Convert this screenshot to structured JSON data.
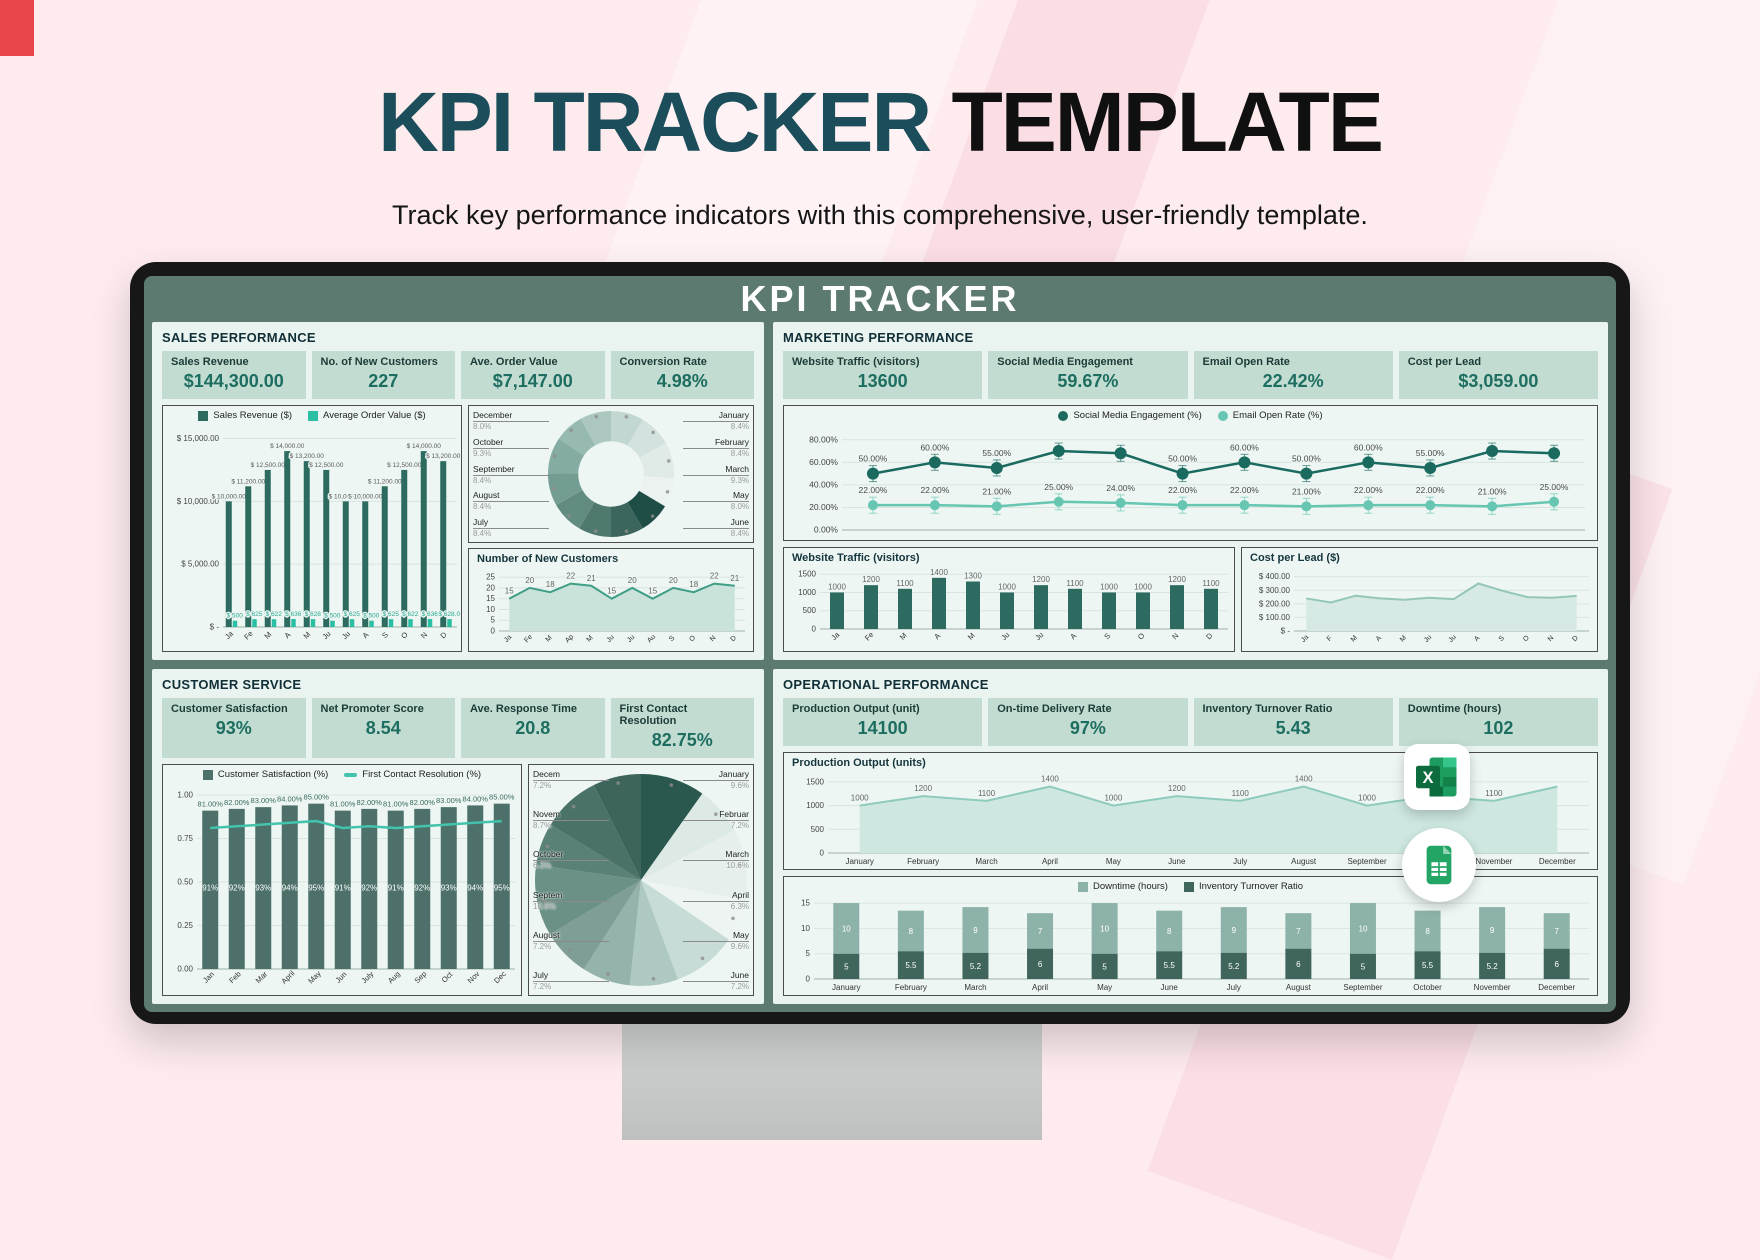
{
  "page": {
    "title_primary": "KPI TRACKER",
    "title_secondary": "TEMPLATE",
    "subtitle": "Track key performance indicators with this comprehensive, user-friendly template.",
    "screen_header": "KPI TRACKER"
  },
  "colors": {
    "page_background": "#fdebee",
    "title_teal": "#1b4e5a",
    "title_black": "#101010",
    "screen_chrome": "#5d7a71",
    "panel_background": "#e9f3f0",
    "kpi_card_background": "#c2dcd2",
    "kpi_value_text": "#1d6e60",
    "bar_dark_teal": "#2d6b61",
    "accent_teal": "#2abfa3",
    "corner_accent_red": "#e8464b"
  },
  "floating_icons": [
    {
      "name": "excel-icon"
    },
    {
      "name": "google-sheets-icon"
    }
  ],
  "sections": {
    "sales": {
      "title": "SALES PERFORMANCE",
      "kpis": [
        {
          "label": "Sales Revenue",
          "value": "$144,300.00"
        },
        {
          "label": "No. of New Customers",
          "value": "227"
        },
        {
          "label": "Ave. Order Value",
          "value": "$7,147.00"
        },
        {
          "label": "Conversion Rate",
          "value": "4.98%"
        }
      ]
    },
    "marketing": {
      "title": "MARKETING PERFORMANCE",
      "kpis": [
        {
          "label": "Website Traffic (visitors)",
          "value": "13600"
        },
        {
          "label": "Social Media Engagement",
          "value": "59.67%"
        },
        {
          "label": "Email Open Rate",
          "value": "22.42%"
        },
        {
          "label": "Cost per Lead",
          "value": "$3,059.00"
        }
      ]
    },
    "customer": {
      "title": "CUSTOMER SERVICE",
      "kpis": [
        {
          "label": "Customer Satisfaction",
          "value": "93%"
        },
        {
          "label": "Net Promoter Score",
          "value": "8.54"
        },
        {
          "label": "Ave. Response Time",
          "value": "20.8"
        },
        {
          "label": "First Contact Resolution",
          "value": "82.75%"
        }
      ]
    },
    "operational": {
      "title": "OPERATIONAL PERFORMANCE",
      "kpis": [
        {
          "label": "Production Output (unit)",
          "value": "14100"
        },
        {
          "label": "On-time Delivery Rate",
          "value": "97%"
        },
        {
          "label": "Inventory Turnover Ratio",
          "value": "5.43"
        },
        {
          "label": "Downtime (hours)",
          "value": "102"
        }
      ]
    }
  },
  "chart_data": [
    {
      "id": "sales_bars",
      "type": "grouped_bar",
      "legend": [
        {
          "label": "Sales Revenue ($)",
          "color": "#2d6b61",
          "shape": "square"
        },
        {
          "label": "Average Order Value ($)",
          "color": "#2abfa3",
          "shape": "square"
        }
      ],
      "categories": [
        "Ja",
        "Fe",
        "M",
        "A",
        "M",
        "Ju",
        "Ju",
        "A",
        "S",
        "O",
        "N",
        "D"
      ],
      "series": [
        {
          "name": "Sales Revenue ($)",
          "color": "#2d6b61",
          "values": [
            10000,
            11200,
            12500,
            14000,
            13200,
            12500,
            10000,
            10000,
            11200,
            12500,
            14000,
            13200
          ],
          "labels": [
            "$ 10,000.00",
            "$ 11,200.00",
            "$ 12,500.00",
            "$ 14,000.00",
            "$ 13,200.00",
            "$ 12,500.00",
            "$ 10,000.00",
            "$ 10,000.00",
            "$ 11,200.00",
            "$ 12,500.00",
            "$ 14,000.00",
            "$ 13,200.00"
          ]
        },
        {
          "name": "Average Order Value ($)",
          "color": "#2abfa3",
          "values": [
            500,
            625,
            622,
            636,
            628,
            500,
            625,
            500,
            625,
            622,
            636,
            628
          ],
          "labels": [
            "$ 500",
            "$ 625",
            "$ 622",
            "$ 636",
            "$ 628",
            "$ 500",
            "$ 625",
            "$ 500",
            "$ 625",
            "$ 622",
            "$ 636",
            "$ 628.0"
          ]
        }
      ],
      "yticks": [
        [
          0,
          "$ -"
        ],
        [
          5000,
          "$ 5,000.00"
        ],
        [
          10000,
          "$ 10,000.00"
        ],
        [
          15000,
          "$ 15,000.00"
        ]
      ],
      "ymax": 15600
    },
    {
      "id": "conversion_donut",
      "type": "donut",
      "note": "Conversion Rate share by month",
      "values": [
        8.4,
        8.4,
        9.3,
        7.5,
        8.0,
        8.4,
        8.4,
        8.4,
        8.4,
        9.3,
        7.5,
        8.0
      ],
      "colors": [
        "#c2d7d2",
        "#d3e2de",
        "#e0eae7",
        "#ebf2f0",
        "#1e4e45",
        "#3c665d",
        "#4f796f",
        "#628b81",
        "#739c92",
        "#85aca3",
        "#96bab1",
        "#abc7c0"
      ],
      "left_labels": [
        [
          "December",
          "8.0%"
        ],
        [
          "October",
          "9.3%"
        ],
        [
          "September",
          "8.4%"
        ],
        [
          "August",
          "8.4%"
        ],
        [
          "July",
          "8.4%"
        ]
      ],
      "right_labels": [
        [
          "January",
          "8.4%"
        ],
        [
          "February",
          "8.4%"
        ],
        [
          "March",
          "9.3%"
        ],
        [
          "May",
          "8.0%"
        ],
        [
          "June",
          "8.4%"
        ]
      ]
    },
    {
      "id": "new_customers",
      "type": "area",
      "title": "Number of New Customers",
      "categories": [
        "Ja",
        "Fe",
        "M",
        "Ap",
        "M",
        "Ju",
        "Ju",
        "Au",
        "S",
        "O",
        "N",
        "D"
      ],
      "values": [
        15,
        20,
        18,
        22,
        21,
        15,
        20,
        15,
        20,
        18,
        22,
        21
      ],
      "labels": [
        "15",
        "20",
        "18",
        "22",
        "21",
        "15",
        "20",
        "15",
        "20",
        "18",
        "22",
        "21"
      ],
      "yticks": [
        [
          0,
          "0"
        ],
        [
          5,
          "5"
        ],
        [
          10,
          "10"
        ],
        [
          15,
          "15"
        ],
        [
          20,
          "20"
        ],
        [
          25,
          "25"
        ]
      ],
      "ymax": 26,
      "ml": 30,
      "line": "#3f9e85",
      "fill": "#c9e3db"
    },
    {
      "id": "marketing_lines",
      "type": "multiline",
      "legend": [
        {
          "label": "Social Media Engagement (%)",
          "color": "#1a6a60",
          "shape": "circle"
        },
        {
          "label": "Email Open Rate (%)",
          "color": "#66c6b2",
          "shape": "circle"
        }
      ],
      "categories": [
        "Ja",
        "Fe",
        "M",
        "A",
        "M",
        "Ju",
        "Ju",
        "A",
        "S",
        "O",
        "N",
        "D"
      ],
      "series": [
        {
          "name": "Social Media Engagement (%)",
          "color": "#1a6a60",
          "values": [
            50,
            60,
            55,
            70,
            68,
            50,
            60,
            50,
            60,
            55,
            70,
            68
          ],
          "labels": [
            "50.00%",
            "60.00%",
            "55.00%",
            "",
            "",
            "50.00%",
            "60.00%",
            "50.00%",
            "60.00%",
            "55.00%",
            "",
            ""
          ]
        },
        {
          "name": "Email Open Rate (%)",
          "color": "#66c6b2",
          "values": [
            22,
            22,
            21,
            25,
            24,
            22,
            22,
            21,
            22,
            22,
            21,
            25
          ],
          "labels": [
            "22.00%",
            "22.00%",
            "21.00%",
            "25.00%",
            "24.00%",
            "22.00%",
            "22.00%",
            "21.00%",
            "22.00%",
            "22.00%",
            "21.00%",
            "25.00%"
          ]
        }
      ],
      "yticks": [
        [
          0,
          "0.00%"
        ],
        [
          20,
          "20.00%"
        ],
        [
          40,
          "40.00%"
        ],
        [
          60,
          "60.00%"
        ],
        [
          80,
          "80.00%"
        ]
      ],
      "ymax": 86
    },
    {
      "id": "website_traffic",
      "type": "bar",
      "title": "Website Traffic (visitors)",
      "color": "#2d6b61",
      "categories": [
        "Ja",
        "Fe",
        "M",
        "A",
        "M",
        "Ju",
        "Ju",
        "A",
        "S",
        "O",
        "N",
        "D"
      ],
      "values": [
        1000,
        1200,
        1100,
        1400,
        1300,
        1000,
        1200,
        1100,
        1000,
        1000,
        1200,
        1100
      ],
      "labels": [
        "1000",
        "1200",
        "1100",
        "1400",
        "1300",
        "1000",
        "1200",
        "1100",
        "1000",
        "1000",
        "1200",
        "1100"
      ],
      "yticks": [
        [
          0,
          "0"
        ],
        [
          500,
          "500"
        ],
        [
          1000,
          "1000"
        ],
        [
          1500,
          "1500"
        ]
      ],
      "ymax": 1560,
      "ml": 36
    },
    {
      "id": "cost_per_lead",
      "type": "area",
      "title": "Cost per Lead ($)",
      "categories": [
        "Ja",
        "F",
        "M",
        "A",
        "M",
        "Ju",
        "Ju",
        "A",
        "S",
        "O",
        "N",
        "D"
      ],
      "values": [
        240,
        210,
        260,
        240,
        230,
        245,
        235,
        350,
        295,
        250,
        245,
        259
      ],
      "yticks": [
        [
          0,
          "$ -"
        ],
        [
          100,
          "$ 100.00"
        ],
        [
          200,
          "$ 200.00"
        ],
        [
          300,
          "$ 300.00"
        ],
        [
          400,
          "$ 400.00"
        ]
      ],
      "ymax": 420,
      "ml": 52,
      "line": "#94c6b8",
      "fill": "#d7e9e4"
    },
    {
      "id": "cs_combo",
      "type": "combo",
      "legend": [
        {
          "label": "Customer Satisfaction  (%)",
          "color": "#4d716a",
          "shape": "square"
        },
        {
          "label": "First Contact Resolution (%)",
          "color": "#43c2ac",
          "shape": "dash"
        }
      ],
      "categories": [
        "Jan",
        "Feb",
        "Mar",
        "April",
        "May",
        "Jun",
        "July",
        "Aug",
        "Sep",
        "Oct",
        "Nov",
        "Dec"
      ],
      "bar_color": "#4d716a",
      "bars": [
        0.91,
        0.92,
        0.93,
        0.94,
        0.95,
        0.91,
        0.92,
        0.91,
        0.92,
        0.93,
        0.94,
        0.95
      ],
      "bar_labels": [
        "91%",
        "92%",
        "93%",
        "94%",
        "95%",
        "91%",
        "92%",
        "91%",
        "92%",
        "93%",
        "94%",
        "95%"
      ],
      "line_color": "#43c2ac",
      "line": [
        0.81,
        0.82,
        0.83,
        0.84,
        0.85,
        0.81,
        0.82,
        0.81,
        0.82,
        0.83,
        0.84,
        0.85
      ],
      "line_labels": [
        "81.00%",
        "82.00%",
        "83.00%",
        "84.00%",
        "85.00%",
        "81.00%",
        "82.00%",
        "81.00%",
        "82.00%",
        "83.00%",
        "84.00%",
        "85.00%"
      ],
      "yticks": [
        [
          0,
          "0.00"
        ],
        [
          0.25,
          "0.25"
        ],
        [
          0.5,
          "0.50"
        ],
        [
          0.75,
          "0.75"
        ],
        [
          1,
          "1.00"
        ]
      ],
      "ymax": 1.04
    },
    {
      "id": "response_pie",
      "type": "pie",
      "note": "Ave. Response Time share by month",
      "values": [
        9.6,
        7.2,
        10.6,
        6.3,
        9.6,
        7.2,
        7.2,
        7.2,
        10.6,
        6.3,
        8.7,
        7.2
      ],
      "colors": [
        "#2a574e",
        "#dce9e5",
        "#e6efec",
        "#eef4f2",
        "#c8dcd7",
        "#aec8c2",
        "#95b3ab",
        "#7f9f96",
        "#6b9187",
        "#5a8177",
        "#4b7268",
        "#3d655b"
      ],
      "left_labels": [
        [
          "Decem",
          "7.2%"
        ],
        [
          "Novem",
          "8.7%"
        ],
        [
          "October",
          "6.3%"
        ],
        [
          "Septem",
          "10.6%"
        ],
        [
          "August",
          "7.2%"
        ],
        [
          "July",
          "7.2%"
        ]
      ],
      "right_labels": [
        [
          "January",
          "9.6%"
        ],
        [
          "Februar",
          "7.2%"
        ],
        [
          "March",
          "10.6%"
        ],
        [
          "April",
          "6.3%"
        ],
        [
          "May",
          "9.6%"
        ],
        [
          "June",
          "7.2%"
        ]
      ]
    },
    {
      "id": "production_output",
      "type": "area",
      "title": "Production Output (units)",
      "categories": [
        "January",
        "February",
        "March",
        "April",
        "May",
        "June",
        "July",
        "August",
        "September",
        "October",
        "November",
        "December"
      ],
      "values": [
        1000,
        1200,
        1100,
        1400,
        1000,
        1200,
        1100,
        1400,
        1000,
        1200,
        1100,
        1400
      ],
      "labels": [
        "1000",
        "1200",
        "1100",
        "1400",
        "1000",
        "1200",
        "1100",
        "1400",
        "1000",
        "1200",
        "1100",
        ""
      ],
      "yticks": [
        [
          0,
          "0"
        ],
        [
          500,
          "500"
        ],
        [
          1000,
          "1000"
        ],
        [
          1500,
          "1500"
        ]
      ],
      "ymax": 1560,
      "ml": 44,
      "flatx": true,
      "line": "#8fcbbd",
      "fill": "#cee7e1"
    },
    {
      "id": "downtime_itr",
      "type": "stacked",
      "legend": [
        {
          "label": "Downtime (hours)",
          "color": "#8db2a9",
          "shape": "square"
        },
        {
          "label": "Inventory Turnover Ratio",
          "color": "#3f655c",
          "shape": "square"
        }
      ],
      "categories": [
        "January",
        "February",
        "March",
        "April",
        "May",
        "June",
        "July",
        "August",
        "September",
        "October",
        "November",
        "December"
      ],
      "series": [
        {
          "name": "Inventory Turnover Ratio",
          "color": "#3f655c",
          "values": [
            5,
            5.5,
            5.2,
            6,
            5,
            5.5,
            5.2,
            6,
            5,
            5.5,
            5.2,
            6
          ],
          "labels": [
            "5",
            "5.5",
            "5.2",
            "6",
            "5",
            "5.5",
            "5.2",
            "6",
            "5",
            "5.5",
            "5.2",
            "6"
          ]
        },
        {
          "name": "Downtime (hours)",
          "color": "#8db2a9",
          "values": [
            10,
            8,
            9,
            7,
            10,
            8,
            9,
            7,
            10,
            8,
            9,
            7
          ],
          "labels": [
            "10",
            "8",
            "9",
            "7",
            "10",
            "8",
            "9",
            "7",
            "10",
            "8",
            "9",
            "7"
          ]
        }
      ],
      "yticks": [
        [
          0,
          "0"
        ],
        [
          5,
          "5"
        ],
        [
          10,
          "10"
        ],
        [
          15,
          "15"
        ]
      ],
      "ymax": 16
    }
  ]
}
